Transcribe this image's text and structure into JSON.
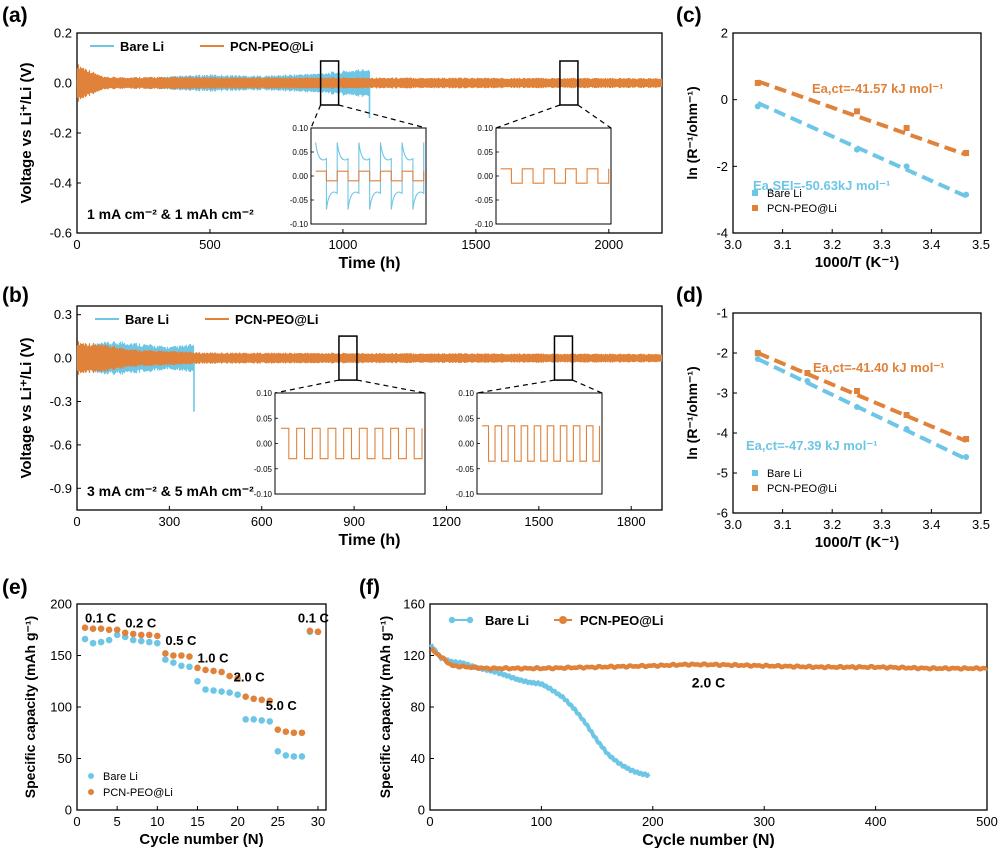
{
  "colors": {
    "bare": "#6ec6e6",
    "pcn": "#e0823a",
    "axis": "#000000"
  },
  "chart_data": [
    {
      "id": "a",
      "panel_label": "(a)",
      "type": "line",
      "title": "",
      "xlabel": "Time (h)",
      "ylabel": "Voltage vs Li⁺/Li (V)",
      "xlim": [
        0,
        2200
      ],
      "ylim": [
        -0.6,
        0.2
      ],
      "xticks": [
        0,
        500,
        1000,
        1500,
        2000
      ],
      "yticks": [
        -0.6,
        -0.4,
        -0.2,
        0.0,
        0.2
      ],
      "xtick_labels": [
        "0",
        "500",
        "1000",
        "1500",
        "2000"
      ],
      "ytick_labels": [
        "-0.6",
        "-0.4",
        "-0.2",
        "0.0",
        "0.2"
      ],
      "legend": [
        "Bare Li",
        "PCN-PEO@Li"
      ],
      "annotation": "1 mA cm⁻² & 1 mAh cm⁻²",
      "series": [
        {
          "name": "Bare Li",
          "x_end": 1100,
          "amplitude": [
            [
              0,
              0.02
            ],
            [
              300,
              0.025
            ],
            [
              500,
              0.035
            ],
            [
              700,
              0.03
            ],
            [
              900,
              0.04
            ],
            [
              1000,
              0.05
            ],
            [
              1100,
              0.06
            ]
          ],
          "spike": {
            "x": 1100,
            "y": -0.14
          }
        },
        {
          "name": "PCN-PEO@Li",
          "x_end": 2200,
          "amplitude": [
            [
              0,
              0.08
            ],
            [
              100,
              0.025
            ],
            [
              2200,
              0.02
            ]
          ]
        }
      ],
      "zoom_regions": [
        {
          "x_center": 950
        },
        {
          "x_center": 1850
        }
      ],
      "insets": [
        {
          "ylim": [
            -0.1,
            0.1
          ],
          "yticks": [
            -0.1,
            -0.05,
            0.0,
            0.05,
            0.1
          ],
          "ytick_labels": [
            "-0.10",
            "-0.05",
            "0.00",
            "0.05",
            "0.10"
          ],
          "cycles": 5,
          "series": [
            {
              "name": "Bare Li",
              "form": "spiky",
              "amplitude": 0.04,
              "overshoot": 0.07
            },
            {
              "name": "PCN-PEO@Li",
              "form": "square",
              "amplitude": 0.01
            }
          ]
        },
        {
          "ylim": [
            -0.1,
            0.1
          ],
          "yticks": [
            -0.1,
            -0.05,
            0.0,
            0.05,
            0.1
          ],
          "ytick_labels": [
            "-0.10",
            "-0.05",
            "0.00",
            "0.05",
            "0.10"
          ],
          "cycles": 5,
          "series": [
            {
              "name": "PCN-PEO@Li",
              "form": "square",
              "amplitude": 0.015
            }
          ]
        }
      ]
    },
    {
      "id": "b",
      "panel_label": "(b)",
      "type": "line",
      "title": "",
      "xlabel": "Time (h)",
      "ylabel": "Voltage vs Li⁺/Li (V)",
      "xlim": [
        0,
        1900
      ],
      "ylim": [
        -1.05,
        0.36
      ],
      "xticks": [
        0,
        300,
        600,
        900,
        1200,
        1500,
        1800
      ],
      "yticks": [
        -0.9,
        -0.6,
        -0.3,
        0.0,
        0.3
      ],
      "xtick_labels": [
        "0",
        "300",
        "600",
        "900",
        "1200",
        "1500",
        "1800"
      ],
      "ytick_labels": [
        "-0.9",
        "-0.6",
        "-0.3",
        "0.0",
        "0.3"
      ],
      "legend": [
        "Bare Li",
        "PCN-PEO@Li"
      ],
      "annotation": "3 mA cm⁻² & 5 mAh cm⁻²",
      "series": [
        {
          "name": "Bare Li",
          "x_end": 380,
          "amplitude": [
            [
              0,
              0.1
            ],
            [
              150,
              0.12
            ],
            [
              300,
              0.08
            ],
            [
              380,
              0.1
            ]
          ],
          "spike": {
            "x": 380,
            "y": -0.37
          }
        },
        {
          "name": "PCN-PEO@Li",
          "x_end": 1900,
          "amplitude": [
            [
              0,
              0.12
            ],
            [
              200,
              0.06
            ],
            [
              400,
              0.04
            ],
            [
              1900,
              0.03
            ]
          ]
        }
      ],
      "zoom_regions": [
        {
          "x_center": 880
        },
        {
          "x_center": 1580
        }
      ],
      "insets": [
        {
          "ylim": [
            -0.1,
            0.1
          ],
          "yticks": [
            -0.1,
            -0.05,
            0.0,
            0.05,
            0.1
          ],
          "ytick_labels": [
            "-0.10",
            "-0.05",
            "0.00",
            "0.05",
            "0.10"
          ],
          "cycles": 9,
          "series": [
            {
              "name": "PCN-PEO@Li",
              "form": "square",
              "amplitude": 0.03
            }
          ]
        },
        {
          "ylim": [
            -0.1,
            0.1
          ],
          "yticks": [
            -0.1,
            -0.05,
            0.0,
            0.05,
            0.1
          ],
          "ytick_labels": [
            "-0.10",
            "-0.05",
            "0.00",
            "0.05",
            "0.10"
          ],
          "cycles": 9,
          "series": [
            {
              "name": "PCN-PEO@Li",
              "form": "square",
              "amplitude": 0.035
            }
          ]
        }
      ]
    },
    {
      "id": "c",
      "panel_label": "(c)",
      "type": "scatter",
      "xlabel": "1000/T (K⁻¹)",
      "ylabel": "ln (R⁻¹/ohm⁻¹)",
      "xlim": [
        3.0,
        3.5
      ],
      "ylim": [
        -4,
        2
      ],
      "xticks": [
        3.0,
        3.1,
        3.2,
        3.3,
        3.4,
        3.5
      ],
      "yticks": [
        -4,
        -2,
        0,
        2
      ],
      "xtick_labels": [
        "3.0",
        "3.1",
        "3.2",
        "3.3",
        "3.4",
        "3.5"
      ],
      "ytick_labels": [
        "-4",
        "-2",
        "0",
        "2"
      ],
      "legend": [
        "Bare Li",
        "PCN-PEO@Li"
      ],
      "series": [
        {
          "name": "Bare Li",
          "x": [
            3.05,
            3.25,
            3.35,
            3.47
          ],
          "y": [
            -0.2,
            -1.5,
            -2.0,
            -2.85
          ],
          "fit": [
            [
              3.05,
              -0.1
            ],
            [
              3.47,
              -2.9
            ]
          ]
        },
        {
          "name": "PCN-PEO@Li",
          "x": [
            3.05,
            3.25,
            3.35,
            3.47
          ],
          "y": [
            0.5,
            -0.35,
            -0.85,
            -1.6
          ],
          "fit": [
            [
              3.05,
              0.55
            ],
            [
              3.47,
              -1.65
            ]
          ]
        }
      ],
      "annotations": [
        {
          "text": "Ea,ct=-41.57 kJ mol⁻¹",
          "color": "pcn"
        },
        {
          "text": "Ea,SEI=-50.63kJ mol⁻¹",
          "color": "bare"
        }
      ]
    },
    {
      "id": "d",
      "panel_label": "(d)",
      "type": "scatter",
      "xlabel": "1000/T (K⁻¹)",
      "ylabel": "ln (R⁻¹/ohm⁻¹)",
      "xlim": [
        3.0,
        3.5
      ],
      "ylim": [
        -6,
        -1
      ],
      "xticks": [
        3.0,
        3.1,
        3.2,
        3.3,
        3.4,
        3.5
      ],
      "yticks": [
        -6,
        -5,
        -4,
        -3,
        -2,
        -1
      ],
      "xtick_labels": [
        "3.0",
        "3.1",
        "3.2",
        "3.3",
        "3.4",
        "3.5"
      ],
      "ytick_labels": [
        "-6",
        "-5",
        "-4",
        "-3",
        "-2",
        "-1"
      ],
      "legend": [
        "Bare Li",
        "PCN-PEO@Li"
      ],
      "series": [
        {
          "name": "Bare Li",
          "x": [
            3.05,
            3.15,
            3.25,
            3.35,
            3.47
          ],
          "y": [
            -2.15,
            -2.7,
            -3.35,
            -3.9,
            -4.6
          ],
          "fit": [
            [
              3.05,
              -2.15
            ],
            [
              3.47,
              -4.65
            ]
          ]
        },
        {
          "name": "PCN-PEO@Li",
          "x": [
            3.05,
            3.15,
            3.25,
            3.35,
            3.47
          ],
          "y": [
            -2.0,
            -2.5,
            -2.95,
            -3.55,
            -4.15
          ],
          "fit": [
            [
              3.05,
              -2.0
            ],
            [
              3.47,
              -4.2
            ]
          ]
        }
      ],
      "annotations": [
        {
          "text": "Ea,ct=-41.40 kJ mol⁻¹",
          "color": "pcn"
        },
        {
          "text": "Ea,ct=-47.39 kJ mol⁻¹",
          "color": "bare"
        }
      ]
    },
    {
      "id": "e",
      "panel_label": "(e)",
      "type": "scatter",
      "xlabel": "Cycle number (N)",
      "ylabel": "Specific capacity (mAh g⁻¹)",
      "xlim": [
        0,
        31
      ],
      "ylim": [
        0,
        200
      ],
      "xticks": [
        0,
        5,
        10,
        15,
        20,
        25,
        30
      ],
      "yticks": [
        0,
        50,
        100,
        150,
        200
      ],
      "xtick_labels": [
        "0",
        "5",
        "10",
        "15",
        "20",
        "25",
        "30"
      ],
      "ytick_labels": [
        "0",
        "50",
        "100",
        "150",
        "200"
      ],
      "legend": [
        "Bare Li",
        "PCN-PEO@Li"
      ],
      "rate_labels": [
        "0.1 C",
        "0.2 C",
        "0.5 C",
        "1.0 C",
        "2.0 C",
        "5.0 C",
        "0.1 C"
      ],
      "series": [
        {
          "name": "Bare Li",
          "x": [
            1,
            2,
            3,
            4,
            5,
            6,
            7,
            8,
            9,
            10,
            11,
            12,
            13,
            14,
            15,
            16,
            17,
            18,
            19,
            20,
            21,
            22,
            23,
            24,
            25,
            26,
            27,
            28,
            29,
            30
          ],
          "y": [
            166,
            162,
            163,
            165,
            170,
            168,
            165,
            164,
            163,
            162,
            146,
            143,
            140,
            139,
            125,
            117,
            116,
            115,
            114,
            112,
            88,
            88,
            87,
            86,
            57,
            53,
            52,
            52,
            173,
            173
          ]
        },
        {
          "name": "PCN-PEO@Li",
          "x": [
            1,
            2,
            3,
            4,
            5,
            6,
            7,
            8,
            9,
            10,
            11,
            12,
            13,
            14,
            15,
            16,
            17,
            18,
            19,
            20,
            21,
            22,
            23,
            24,
            25,
            26,
            27,
            28,
            29,
            30
          ],
          "y": [
            177,
            176,
            176,
            175,
            175,
            172,
            171,
            170,
            170,
            169,
            152,
            150,
            150,
            149,
            138,
            136,
            135,
            134,
            130,
            128,
            110,
            108,
            107,
            106,
            78,
            76,
            75,
            75,
            174,
            173
          ]
        }
      ]
    },
    {
      "id": "f",
      "panel_label": "(f)",
      "type": "scatter",
      "xlabel": "Cycle number (N)",
      "ylabel": "Specific capacity (mAh g⁻¹)",
      "xlim": [
        0,
        500
      ],
      "ylim": [
        0,
        160
      ],
      "xticks": [
        0,
        100,
        200,
        300,
        400,
        500
      ],
      "yticks": [
        0,
        40,
        80,
        120,
        160
      ],
      "xtick_labels": [
        "0",
        "100",
        "200",
        "300",
        "400",
        "500"
      ],
      "ytick_labels": [
        "0",
        "40",
        "80",
        "120",
        "160"
      ],
      "legend": [
        "Bare Li",
        "PCN-PEO@Li"
      ],
      "annotation": "2.0 C",
      "series": [
        {
          "name": "Bare Li",
          "x": [
            1,
            10,
            20,
            30,
            40,
            50,
            60,
            70,
            80,
            90,
            100,
            110,
            120,
            130,
            140,
            150,
            160,
            170,
            180,
            190,
            197
          ],
          "y": [
            128,
            118,
            115,
            114,
            111,
            109,
            107,
            104,
            101,
            99,
            98,
            93,
            87,
            78,
            67,
            54,
            43,
            36,
            31,
            28,
            27
          ]
        },
        {
          "name": "PCN-PEO@Li",
          "x": [
            1,
            20,
            50,
            100,
            150,
            200,
            230,
            250,
            300,
            350,
            400,
            450,
            500
          ],
          "y": [
            125,
            112,
            110,
            110,
            111,
            112,
            113,
            113,
            112,
            111,
            111,
            110,
            110
          ]
        }
      ]
    }
  ]
}
